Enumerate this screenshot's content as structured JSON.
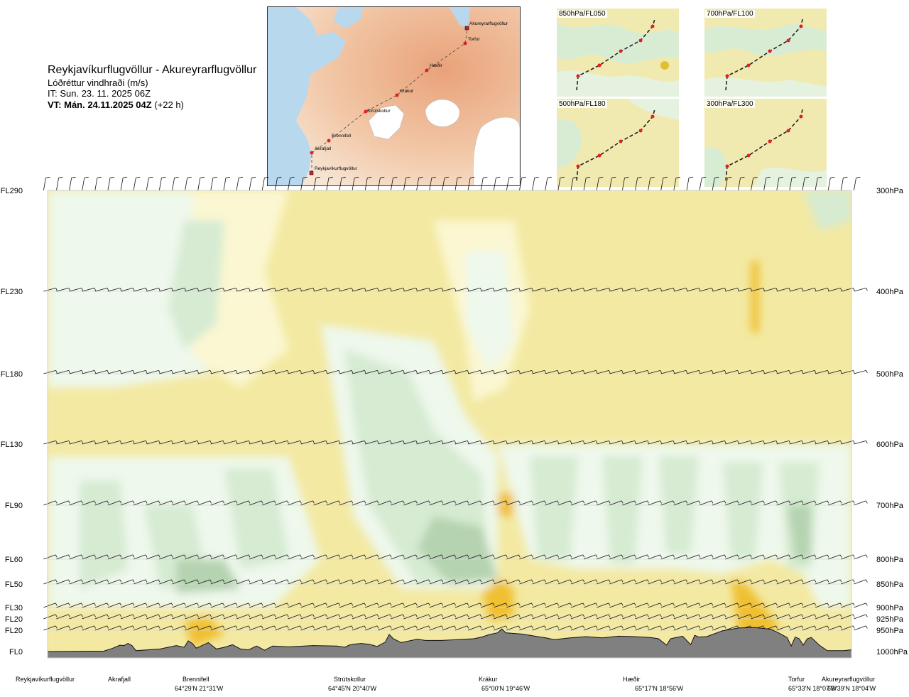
{
  "header": {
    "route_title": "Reykjavíkurflugvöllur - Akureyrarflugvöllur",
    "variable": "Lóðréttur vindhraði (m/s)",
    "issue_time": "IT: Sun. 23. 11. 2025 06Z",
    "valid_prefix": "VT: Mán. 24.11.2025 04Z",
    "valid_suffix": "(+22 h)"
  },
  "map": {
    "waypoints": [
      "Akureyrarflugvöllur",
      "Torfur",
      "Hæðir",
      "Krákur",
      "Strútskollur",
      "Brennifell",
      "Akrafjall",
      "Reykjavíkurflugvöllur"
    ]
  },
  "panels": [
    {
      "label": "850hPa/FL050"
    },
    {
      "label": "700hPa/FL100"
    },
    {
      "label": "500hPa/FL180"
    },
    {
      "label": "300hPa/FL300"
    }
  ],
  "colors": {
    "pale_yellow": "#f3e9a2",
    "light_yellow": "#fbf7d2",
    "very_light_green": "#eef8ec",
    "light_green": "#d6ebd2",
    "mid_green": "#b5d3b0",
    "dark_green": "#94b98f",
    "orange": "#f0c030",
    "terrain": "#808080"
  },
  "chart_data": {
    "type": "heatmap",
    "title": "Lóðréttur vindhraði (m/s)",
    "xlabel": "",
    "ylabel": "",
    "x_range": [
      0,
      100
    ],
    "levels": [
      {
        "fl": "FL290",
        "hpa": "300hPa",
        "p": 300
      },
      {
        "fl": "FL230",
        "hpa": "400hPa",
        "p": 400
      },
      {
        "fl": "FL180",
        "hpa": "500hPa",
        "p": 500
      },
      {
        "fl": "FL130",
        "hpa": "600hPa",
        "p": 600
      },
      {
        "fl": "FL90",
        "hpa": "700hPa",
        "p": 700
      },
      {
        "fl": "FL60",
        "hpa": "800hPa",
        "p": 800
      },
      {
        "fl": "FL50",
        "hpa": "850hPa",
        "p": 850
      },
      {
        "fl": "FL30",
        "hpa": "900hPa",
        "p": 900
      },
      {
        "fl": "FL20",
        "hpa": "925hPa",
        "p": 925
      },
      {
        "fl": "FL20",
        "hpa": "950hPa",
        "p": 950
      },
      {
        "fl": "FL0",
        "hpa": "1000hPa",
        "p": 1000
      }
    ],
    "waypoints": [
      {
        "name": "Reykjavíkurflugvöllur",
        "coord": "",
        "x": 0
      },
      {
        "name": "Akrafjall",
        "coord": "",
        "x": 9
      },
      {
        "name": "Brennifell",
        "coord": "64°29'N 21°31'W",
        "x": 19
      },
      {
        "name": "Strútskollur",
        "coord": "64°45'N 20°40'W",
        "x": 38
      },
      {
        "name": "Krákur",
        "coord": "65°00'N 19°46'W",
        "x": 55
      },
      {
        "name": "Hæðir",
        "coord": "65°17'N 18°56'W",
        "x": 73
      },
      {
        "name": "Torfur",
        "coord": "65°33'N 18°07'W",
        "x": 93
      },
      {
        "name": "Akureyrarflugvöllur",
        "coord": "65°39'N 18°04'W",
        "x": 100
      }
    ],
    "terrain_surface_hpa": [
      [
        0,
        1000
      ],
      [
        7,
        999
      ],
      [
        8,
        993
      ],
      [
        9,
        985
      ],
      [
        9.5,
        986
      ],
      [
        10,
        981
      ],
      [
        10.5,
        986
      ],
      [
        11,
        998
      ],
      [
        14,
        994
      ],
      [
        16,
        986
      ],
      [
        17,
        990
      ],
      [
        17.5,
        975
      ],
      [
        18,
        981
      ],
      [
        18.5,
        992
      ],
      [
        20,
        979
      ],
      [
        21,
        994
      ],
      [
        22,
        990
      ],
      [
        23,
        984
      ],
      [
        24,
        994
      ],
      [
        25,
        996
      ],
      [
        26,
        987
      ],
      [
        27,
        997
      ],
      [
        28,
        987
      ],
      [
        30,
        989
      ],
      [
        33,
        986
      ],
      [
        36,
        987
      ],
      [
        37,
        990
      ],
      [
        37.5,
        985
      ],
      [
        38,
        983
      ],
      [
        39,
        981
      ],
      [
        40,
        983
      ],
      [
        41,
        988
      ],
      [
        42,
        978
      ],
      [
        42.5,
        960
      ],
      [
        43,
        970
      ],
      [
        44,
        979
      ],
      [
        46,
        971
      ],
      [
        47,
        974
      ],
      [
        49,
        974
      ],
      [
        53,
        970
      ],
      [
        54,
        966
      ],
      [
        55,
        960
      ],
      [
        56,
        956
      ],
      [
        56.5,
        947
      ],
      [
        57,
        956
      ],
      [
        59,
        959
      ],
      [
        62,
        968
      ],
      [
        63,
        972
      ],
      [
        65,
        968
      ],
      [
        67,
        965
      ],
      [
        69,
        968
      ],
      [
        71,
        964
      ],
      [
        73,
        965
      ],
      [
        75,
        967
      ],
      [
        76,
        970
      ],
      [
        77,
        985
      ],
      [
        77.5,
        970
      ],
      [
        78,
        968
      ],
      [
        79,
        964
      ],
      [
        80,
        984
      ],
      [
        80.5,
        962
      ],
      [
        81,
        966
      ],
      [
        82,
        965
      ],
      [
        84,
        951
      ],
      [
        86,
        945
      ],
      [
        88,
        944
      ],
      [
        90,
        948
      ],
      [
        91,
        957
      ],
      [
        92,
        967
      ],
      [
        92.5,
        987
      ],
      [
        93,
        966
      ],
      [
        93.5,
        970
      ],
      [
        94,
        985
      ],
      [
        94.5,
        970
      ],
      [
        95,
        967
      ],
      [
        96,
        985
      ],
      [
        97,
        998
      ],
      [
        99,
        998
      ],
      [
        100,
        996
      ]
    ],
    "contours": [
      {
        "level": "light_green",
        "region": "upper-left",
        "pmin": 300,
        "pmax": 500,
        "x0": 0,
        "x1": 20
      },
      {
        "level": "light_green",
        "region": "mid-column",
        "pmin": 450,
        "pmax": 860,
        "x0": 36,
        "x1": 55
      },
      {
        "level": "light_green",
        "region": "lower-right-bands",
        "pmin": 600,
        "pmax": 900,
        "x0": 55,
        "x1": 100
      },
      {
        "level": "orange",
        "region": "near-Krákur",
        "pmin": 850,
        "pmax": 940,
        "x0": 55,
        "x1": 58
      },
      {
        "level": "orange",
        "region": "near-Torfur",
        "pmin": 850,
        "pmax": 990,
        "x0": 84,
        "x1": 91
      }
    ]
  }
}
